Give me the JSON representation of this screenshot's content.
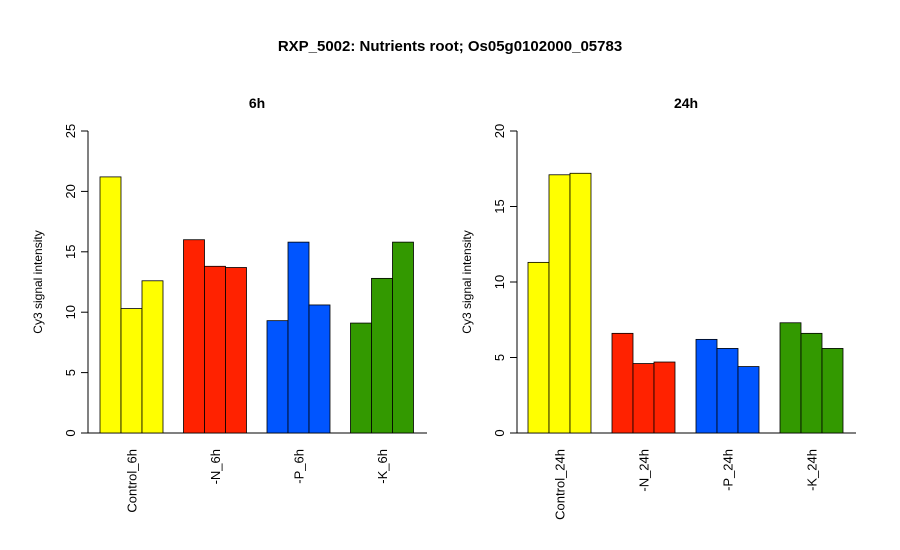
{
  "figure": {
    "title": "RXP_5002: Nutrients root; Os05g0102000_05783"
  },
  "colors": {
    "control": "#ffff00",
    "n": "#ff2200",
    "p": "#0055ff",
    "k": "#339900"
  },
  "chart_data": [
    {
      "type": "bar",
      "title": "6h",
      "ylabel": "Cy3 signal intensity",
      "ylim": [
        0,
        25
      ],
      "yticks": [
        "0",
        "5",
        "10",
        "15",
        "20",
        "25"
      ],
      "categories": [
        "Control_6h",
        "-N_6h",
        "-P_6h",
        "-K_6h"
      ],
      "groups": [
        {
          "label": "Control_6h",
          "color": "#ffff00",
          "values": [
            21.2,
            10.3,
            12.6
          ]
        },
        {
          "label": "-N_6h",
          "color": "#ff2200",
          "values": [
            16.0,
            13.8,
            13.7
          ]
        },
        {
          "label": "-P_6h",
          "color": "#0055ff",
          "values": [
            9.3,
            15.8,
            10.6
          ]
        },
        {
          "label": "-K_6h",
          "color": "#339900",
          "values": [
            9.1,
            12.8,
            15.8
          ]
        }
      ]
    },
    {
      "type": "bar",
      "title": "24h",
      "ylabel": "Cy3 signal intensity",
      "ylim": [
        0,
        20
      ],
      "yticks": [
        "0",
        "5",
        "10",
        "15",
        "20"
      ],
      "categories": [
        "Control_24h",
        "-N_24h",
        "-P_24h",
        "-K_24h"
      ],
      "groups": [
        {
          "label": "Control_24h",
          "color": "#ffff00",
          "values": [
            11.3,
            17.1,
            17.2
          ]
        },
        {
          "label": "-N_24h",
          "color": "#ff2200",
          "values": [
            6.6,
            4.6,
            4.7
          ]
        },
        {
          "label": "-P_24h",
          "color": "#0055ff",
          "values": [
            6.2,
            5.6,
            4.4
          ]
        },
        {
          "label": "-K_24h",
          "color": "#339900",
          "values": [
            7.3,
            6.6,
            5.6
          ]
        }
      ]
    }
  ]
}
